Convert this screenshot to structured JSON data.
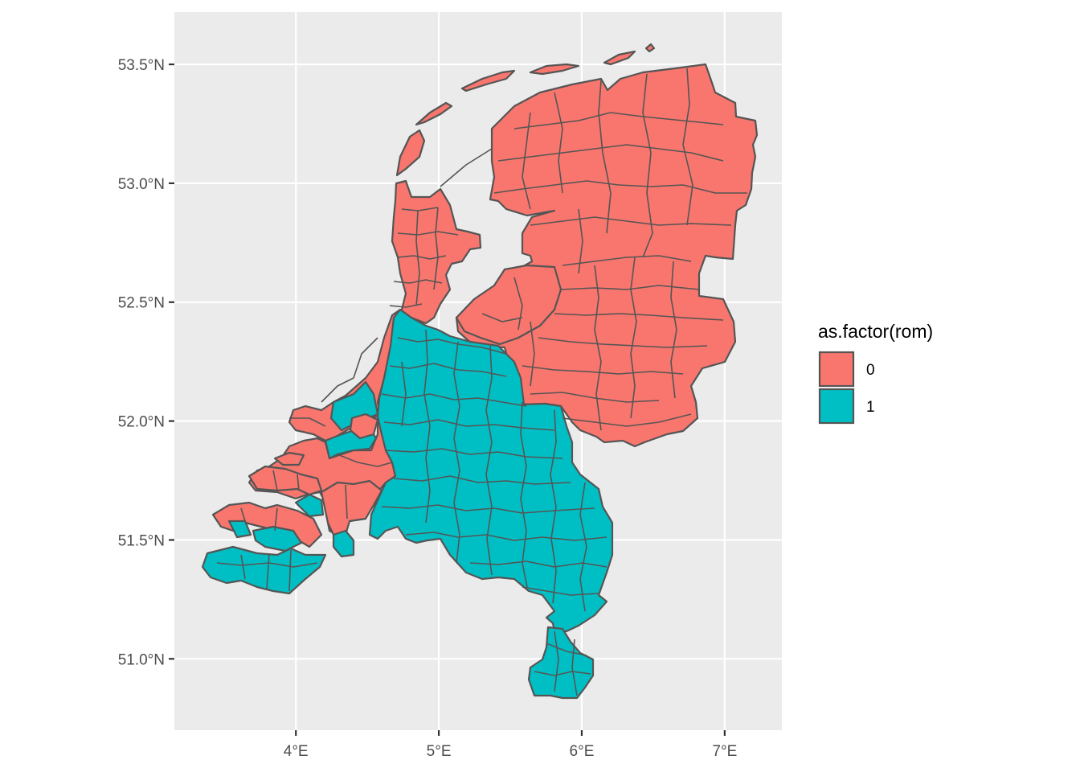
{
  "colors": {
    "panel": "#ebebeb",
    "grid": "#ffffff",
    "outline": "#555555",
    "class_0": "#f8766d",
    "class_1": "#00bfc4"
  },
  "axes": {
    "x_ticks": [
      "4°E",
      "5°E",
      "6°E",
      "7°E"
    ],
    "y_ticks": [
      "51.0°N",
      "51.5°N",
      "52.0°N",
      "52.5°N",
      "53.0°N",
      "53.5°N"
    ]
  },
  "legend": {
    "title": "as.factor(rom)",
    "items": [
      {
        "label": "0",
        "color_key": "class_0"
      },
      {
        "label": "1",
        "color_key": "class_1"
      }
    ]
  },
  "chart_data": {
    "type": "choropleth",
    "title": "",
    "xlabel": "",
    "ylabel": "",
    "fill_variable": "as.factor(rom)",
    "categories": [
      "0",
      "1"
    ],
    "x_ticks": [
      4,
      5,
      6,
      7
    ],
    "y_ticks": [
      51.0,
      51.5,
      52.0,
      52.5,
      53.0,
      53.5
    ],
    "xlim": [
      3.15,
      7.4
    ],
    "ylim": [
      50.7,
      53.72
    ],
    "grid": true,
    "legend_position": "right",
    "regions": [
      {
        "class": "0",
        "area": "north and east"
      },
      {
        "class": "1",
        "area": "south and centre"
      }
    ]
  }
}
